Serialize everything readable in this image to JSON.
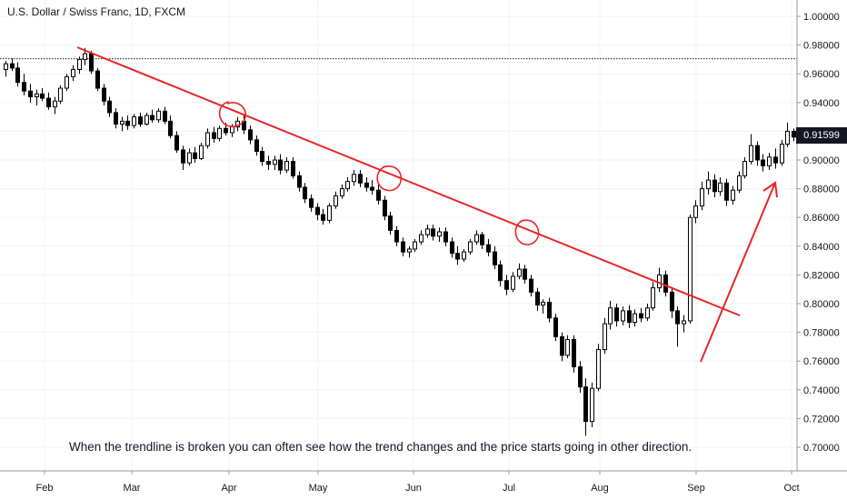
{
  "chart_data": {
    "type": "candlestick",
    "title": "U.S. Dollar / Swiss Franc, 1D, FXCM",
    "annotation": "When the trendline is broken you can often see how the trend changes and the price starts going in other direction.",
    "x_ticks": [
      "Feb",
      "Mar",
      "Apr",
      "May",
      "Jun",
      "Jul",
      "Aug",
      "Sep",
      "Oct"
    ],
    "y_ticks": [
      "1.00000",
      "0.98000",
      "0.96000",
      "0.94000",
      "0.92000",
      "0.90000",
      "0.88000",
      "0.86000",
      "0.84000",
      "0.82000",
      "0.80000",
      "0.78000",
      "0.76000",
      "0.74000",
      "0.72000",
      "0.70000"
    ],
    "ylim": [
      0.69,
      1.01
    ],
    "last_price": "0.91599",
    "resistance_level": 0.9705,
    "trendline": {
      "from": [
        "Feb 12",
        0.978
      ],
      "to": [
        "Sep 16",
        0.7915
      ]
    },
    "arrow": {
      "from": [
        "Sep 03",
        0.759
      ],
      "to": [
        "Sep 25",
        0.8805
      ]
    },
    "highlighted_touches": [
      {
        "date": "Apr 02",
        "price": 0.93
      },
      {
        "date": "May 20",
        "price": 0.887
      },
      {
        "date": "Jul 05",
        "price": 0.848
      }
    ],
    "candles": [
      {
        "o": 0.963,
        "h": 0.969,
        "l": 0.958,
        "c": 0.967
      },
      {
        "o": 0.967,
        "h": 0.971,
        "l": 0.962,
        "c": 0.964
      },
      {
        "o": 0.964,
        "h": 0.968,
        "l": 0.951,
        "c": 0.954
      },
      {
        "o": 0.954,
        "h": 0.96,
        "l": 0.945,
        "c": 0.948
      },
      {
        "o": 0.948,
        "h": 0.953,
        "l": 0.94,
        "c": 0.944
      },
      {
        "o": 0.944,
        "h": 0.949,
        "l": 0.938,
        "c": 0.946
      },
      {
        "o": 0.946,
        "h": 0.95,
        "l": 0.941,
        "c": 0.943
      },
      {
        "o": 0.943,
        "h": 0.947,
        "l": 0.935,
        "c": 0.937
      },
      {
        "o": 0.937,
        "h": 0.944,
        "l": 0.932,
        "c": 0.941
      },
      {
        "o": 0.941,
        "h": 0.952,
        "l": 0.939,
        "c": 0.95
      },
      {
        "o": 0.95,
        "h": 0.96,
        "l": 0.948,
        "c": 0.958
      },
      {
        "o": 0.958,
        "h": 0.966,
        "l": 0.955,
        "c": 0.963
      },
      {
        "o": 0.963,
        "h": 0.972,
        "l": 0.96,
        "c": 0.97
      },
      {
        "o": 0.97,
        "h": 0.978,
        "l": 0.966,
        "c": 0.974
      },
      {
        "o": 0.974,
        "h": 0.976,
        "l": 0.96,
        "c": 0.962
      },
      {
        "o": 0.962,
        "h": 0.964,
        "l": 0.948,
        "c": 0.95
      },
      {
        "o": 0.95,
        "h": 0.953,
        "l": 0.938,
        "c": 0.941
      },
      {
        "o": 0.941,
        "h": 0.944,
        "l": 0.93,
        "c": 0.933
      },
      {
        "o": 0.933,
        "h": 0.936,
        "l": 0.922,
        "c": 0.925
      },
      {
        "o": 0.925,
        "h": 0.93,
        "l": 0.92,
        "c": 0.927
      },
      {
        "o": 0.927,
        "h": 0.931,
        "l": 0.921,
        "c": 0.924
      },
      {
        "o": 0.924,
        "h": 0.932,
        "l": 0.922,
        "c": 0.93
      },
      {
        "o": 0.93,
        "h": 0.933,
        "l": 0.923,
        "c": 0.925
      },
      {
        "o": 0.925,
        "h": 0.933,
        "l": 0.924,
        "c": 0.931
      },
      {
        "o": 0.931,
        "h": 0.935,
        "l": 0.926,
        "c": 0.928
      },
      {
        "o": 0.928,
        "h": 0.936,
        "l": 0.926,
        "c": 0.934
      },
      {
        "o": 0.934,
        "h": 0.937,
        "l": 0.925,
        "c": 0.927
      },
      {
        "o": 0.927,
        "h": 0.931,
        "l": 0.915,
        "c": 0.917
      },
      {
        "o": 0.917,
        "h": 0.92,
        "l": 0.905,
        "c": 0.907
      },
      {
        "o": 0.907,
        "h": 0.91,
        "l": 0.893,
        "c": 0.898
      },
      {
        "o": 0.898,
        "h": 0.908,
        "l": 0.896,
        "c": 0.905
      },
      {
        "o": 0.905,
        "h": 0.909,
        "l": 0.898,
        "c": 0.901
      },
      {
        "o": 0.901,
        "h": 0.912,
        "l": 0.9,
        "c": 0.91
      },
      {
        "o": 0.91,
        "h": 0.922,
        "l": 0.908,
        "c": 0.919
      },
      {
        "o": 0.919,
        "h": 0.923,
        "l": 0.912,
        "c": 0.915
      },
      {
        "o": 0.915,
        "h": 0.924,
        "l": 0.913,
        "c": 0.922
      },
      {
        "o": 0.922,
        "h": 0.926,
        "l": 0.917,
        "c": 0.919
      },
      {
        "o": 0.919,
        "h": 0.925,
        "l": 0.916,
        "c": 0.923
      },
      {
        "o": 0.923,
        "h": 0.93,
        "l": 0.92,
        "c": 0.927
      },
      {
        "o": 0.927,
        "h": 0.931,
        "l": 0.918,
        "c": 0.921
      },
      {
        "o": 0.921,
        "h": 0.924,
        "l": 0.911,
        "c": 0.914
      },
      {
        "o": 0.914,
        "h": 0.917,
        "l": 0.903,
        "c": 0.906
      },
      {
        "o": 0.906,
        "h": 0.909,
        "l": 0.896,
        "c": 0.899
      },
      {
        "o": 0.899,
        "h": 0.903,
        "l": 0.893,
        "c": 0.897
      },
      {
        "o": 0.897,
        "h": 0.903,
        "l": 0.893,
        "c": 0.9
      },
      {
        "o": 0.9,
        "h": 0.904,
        "l": 0.89,
        "c": 0.893
      },
      {
        "o": 0.893,
        "h": 0.902,
        "l": 0.891,
        "c": 0.899
      },
      {
        "o": 0.899,
        "h": 0.902,
        "l": 0.887,
        "c": 0.889
      },
      {
        "o": 0.889,
        "h": 0.892,
        "l": 0.878,
        "c": 0.881
      },
      {
        "o": 0.881,
        "h": 0.884,
        "l": 0.87,
        "c": 0.873
      },
      {
        "o": 0.873,
        "h": 0.876,
        "l": 0.864,
        "c": 0.867
      },
      {
        "o": 0.867,
        "h": 0.87,
        "l": 0.858,
        "c": 0.862
      },
      {
        "o": 0.862,
        "h": 0.866,
        "l": 0.855,
        "c": 0.858
      },
      {
        "o": 0.858,
        "h": 0.87,
        "l": 0.856,
        "c": 0.868
      },
      {
        "o": 0.868,
        "h": 0.878,
        "l": 0.866,
        "c": 0.875
      },
      {
        "o": 0.875,
        "h": 0.883,
        "l": 0.873,
        "c": 0.88
      },
      {
        "o": 0.88,
        "h": 0.888,
        "l": 0.878,
        "c": 0.885
      },
      {
        "o": 0.885,
        "h": 0.893,
        "l": 0.882,
        "c": 0.89
      },
      {
        "o": 0.89,
        "h": 0.893,
        "l": 0.881,
        "c": 0.884
      },
      {
        "o": 0.884,
        "h": 0.888,
        "l": 0.878,
        "c": 0.881
      },
      {
        "o": 0.881,
        "h": 0.886,
        "l": 0.876,
        "c": 0.879
      },
      {
        "o": 0.879,
        "h": 0.883,
        "l": 0.869,
        "c": 0.872
      },
      {
        "o": 0.872,
        "h": 0.875,
        "l": 0.858,
        "c": 0.861
      },
      {
        "o": 0.861,
        "h": 0.864,
        "l": 0.848,
        "c": 0.851
      },
      {
        "o": 0.851,
        "h": 0.854,
        "l": 0.84,
        "c": 0.843
      },
      {
        "o": 0.843,
        "h": 0.846,
        "l": 0.833,
        "c": 0.836
      },
      {
        "o": 0.836,
        "h": 0.84,
        "l": 0.832,
        "c": 0.838
      },
      {
        "o": 0.838,
        "h": 0.845,
        "l": 0.836,
        "c": 0.843
      },
      {
        "o": 0.843,
        "h": 0.851,
        "l": 0.841,
        "c": 0.848
      },
      {
        "o": 0.848,
        "h": 0.855,
        "l": 0.846,
        "c": 0.852
      },
      {
        "o": 0.852,
        "h": 0.855,
        "l": 0.844,
        "c": 0.847
      },
      {
        "o": 0.847,
        "h": 0.853,
        "l": 0.843,
        "c": 0.85
      },
      {
        "o": 0.85,
        "h": 0.853,
        "l": 0.84,
        "c": 0.843
      },
      {
        "o": 0.843,
        "h": 0.846,
        "l": 0.832,
        "c": 0.835
      },
      {
        "o": 0.835,
        "h": 0.84,
        "l": 0.827,
        "c": 0.831
      },
      {
        "o": 0.831,
        "h": 0.838,
        "l": 0.829,
        "c": 0.836
      },
      {
        "o": 0.836,
        "h": 0.845,
        "l": 0.834,
        "c": 0.843
      },
      {
        "o": 0.843,
        "h": 0.851,
        "l": 0.841,
        "c": 0.848
      },
      {
        "o": 0.848,
        "h": 0.85,
        "l": 0.838,
        "c": 0.841
      },
      {
        "o": 0.841,
        "h": 0.845,
        "l": 0.833,
        "c": 0.836
      },
      {
        "o": 0.836,
        "h": 0.84,
        "l": 0.824,
        "c": 0.827
      },
      {
        "o": 0.827,
        "h": 0.83,
        "l": 0.812,
        "c": 0.816
      },
      {
        "o": 0.816,
        "h": 0.82,
        "l": 0.806,
        "c": 0.81
      },
      {
        "o": 0.81,
        "h": 0.822,
        "l": 0.808,
        "c": 0.819
      },
      {
        "o": 0.819,
        "h": 0.828,
        "l": 0.817,
        "c": 0.824
      },
      {
        "o": 0.824,
        "h": 0.827,
        "l": 0.814,
        "c": 0.817
      },
      {
        "o": 0.817,
        "h": 0.82,
        "l": 0.805,
        "c": 0.808
      },
      {
        "o": 0.808,
        "h": 0.811,
        "l": 0.795,
        "c": 0.799
      },
      {
        "o": 0.799,
        "h": 0.803,
        "l": 0.793,
        "c": 0.801
      },
      {
        "o": 0.801,
        "h": 0.804,
        "l": 0.787,
        "c": 0.79
      },
      {
        "o": 0.79,
        "h": 0.793,
        "l": 0.774,
        "c": 0.777
      },
      {
        "o": 0.777,
        "h": 0.78,
        "l": 0.76,
        "c": 0.764
      },
      {
        "o": 0.764,
        "h": 0.778,
        "l": 0.762,
        "c": 0.775
      },
      {
        "o": 0.775,
        "h": 0.778,
        "l": 0.752,
        "c": 0.756
      },
      {
        "o": 0.756,
        "h": 0.76,
        "l": 0.738,
        "c": 0.742
      },
      {
        "o": 0.742,
        "h": 0.748,
        "l": 0.708,
        "c": 0.718
      },
      {
        "o": 0.718,
        "h": 0.745,
        "l": 0.714,
        "c": 0.741
      },
      {
        "o": 0.741,
        "h": 0.772,
        "l": 0.739,
        "c": 0.768
      },
      {
        "o": 0.768,
        "h": 0.79,
        "l": 0.765,
        "c": 0.786
      },
      {
        "o": 0.786,
        "h": 0.802,
        "l": 0.782,
        "c": 0.797
      },
      {
        "o": 0.797,
        "h": 0.8,
        "l": 0.784,
        "c": 0.788
      },
      {
        "o": 0.788,
        "h": 0.798,
        "l": 0.785,
        "c": 0.795
      },
      {
        "o": 0.795,
        "h": 0.799,
        "l": 0.783,
        "c": 0.787
      },
      {
        "o": 0.787,
        "h": 0.796,
        "l": 0.784,
        "c": 0.793
      },
      {
        "o": 0.793,
        "h": 0.797,
        "l": 0.787,
        "c": 0.79
      },
      {
        "o": 0.79,
        "h": 0.8,
        "l": 0.788,
        "c": 0.797
      },
      {
        "o": 0.797,
        "h": 0.815,
        "l": 0.795,
        "c": 0.811
      },
      {
        "o": 0.811,
        "h": 0.825,
        "l": 0.808,
        "c": 0.82
      },
      {
        "o": 0.82,
        "h": 0.823,
        "l": 0.805,
        "c": 0.808
      },
      {
        "o": 0.808,
        "h": 0.811,
        "l": 0.79,
        "c": 0.795
      },
      {
        "o": 0.795,
        "h": 0.798,
        "l": 0.77,
        "c": 0.786
      },
      {
        "o": 0.786,
        "h": 0.792,
        "l": 0.78,
        "c": 0.788
      },
      {
        "o": 0.788,
        "h": 0.862,
        "l": 0.786,
        "c": 0.86
      },
      {
        "o": 0.86,
        "h": 0.872,
        "l": 0.856,
        "c": 0.868
      },
      {
        "o": 0.868,
        "h": 0.885,
        "l": 0.865,
        "c": 0.88
      },
      {
        "o": 0.88,
        "h": 0.892,
        "l": 0.876,
        "c": 0.886
      },
      {
        "o": 0.886,
        "h": 0.89,
        "l": 0.874,
        "c": 0.878
      },
      {
        "o": 0.878,
        "h": 0.888,
        "l": 0.875,
        "c": 0.884
      },
      {
        "o": 0.884,
        "h": 0.887,
        "l": 0.868,
        "c": 0.872
      },
      {
        "o": 0.872,
        "h": 0.882,
        "l": 0.869,
        "c": 0.879
      },
      {
        "o": 0.879,
        "h": 0.892,
        "l": 0.877,
        "c": 0.889
      },
      {
        "o": 0.889,
        "h": 0.902,
        "l": 0.887,
        "c": 0.899
      },
      {
        "o": 0.899,
        "h": 0.918,
        "l": 0.897,
        "c": 0.91
      },
      {
        "o": 0.91,
        "h": 0.913,
        "l": 0.896,
        "c": 0.9
      },
      {
        "o": 0.9,
        "h": 0.904,
        "l": 0.892,
        "c": 0.896
      },
      {
        "o": 0.896,
        "h": 0.905,
        "l": 0.893,
        "c": 0.902
      },
      {
        "o": 0.902,
        "h": 0.908,
        "l": 0.894,
        "c": 0.898
      },
      {
        "o": 0.898,
        "h": 0.914,
        "l": 0.896,
        "c": 0.911
      },
      {
        "o": 0.911,
        "h": 0.926,
        "l": 0.909,
        "c": 0.92
      },
      {
        "o": 0.92,
        "h": 0.922,
        "l": 0.913,
        "c": 0.916
      }
    ]
  }
}
